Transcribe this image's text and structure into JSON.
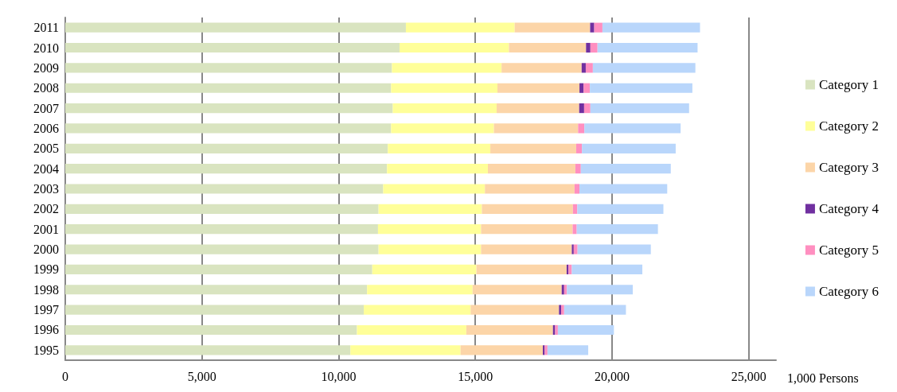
{
  "chart_data": {
    "type": "bar",
    "orientation": "horizontal",
    "stacked": true,
    "xlabel": "1,000 Persons",
    "categories": [
      "2011",
      "2010",
      "2009",
      "2008",
      "2007",
      "2006",
      "2005",
      "2004",
      "2003",
      "2002",
      "2001",
      "2000",
      "1999",
      "1998",
      "1997",
      "1996",
      "1995"
    ],
    "series": [
      {
        "name": "Category 1",
        "color": "#d9e4c0",
        "values": [
          12460,
          12230,
          11950,
          11920,
          11980,
          11920,
          11800,
          11770,
          11630,
          11460,
          11440,
          11460,
          11230,
          11040,
          10920,
          10670,
          10430
        ]
      },
      {
        "name": "Category 2",
        "color": "#ffff99",
        "values": [
          3980,
          4000,
          4010,
          3890,
          3800,
          3760,
          3750,
          3690,
          3720,
          3780,
          3770,
          3750,
          3810,
          3860,
          3910,
          4000,
          4030
        ]
      },
      {
        "name": "Category 3",
        "color": "#fcd5a8",
        "values": [
          2760,
          2820,
          2930,
          3000,
          3020,
          3080,
          3140,
          3200,
          3280,
          3330,
          3350,
          3320,
          3300,
          3260,
          3230,
          3170,
          3010
        ]
      },
      {
        "name": "Category 4",
        "color": "#7030a0",
        "values": [
          150,
          160,
          150,
          150,
          180,
          0,
          0,
          0,
          0,
          0,
          0,
          70,
          70,
          90,
          80,
          80,
          70
        ]
      },
      {
        "name": "Category 5",
        "color": "#ff8fc0",
        "values": [
          300,
          260,
          260,
          230,
          230,
          230,
          210,
          200,
          180,
          160,
          150,
          140,
          120,
          100,
          110,
          100,
          100
        ]
      },
      {
        "name": "Category 6",
        "color": "#b9d6fb",
        "values": [
          3570,
          3660,
          3750,
          3750,
          3610,
          3520,
          3430,
          3290,
          3210,
          3150,
          2970,
          2680,
          2580,
          2410,
          2260,
          2050,
          1490
        ]
      }
    ],
    "xlim": [
      0,
      26000
    ],
    "xticks": [
      {
        "value": 0,
        "label": "0"
      },
      {
        "value": 5000,
        "label": "5,000"
      },
      {
        "value": 10000,
        "label": "10,000"
      },
      {
        "value": 15000,
        "label": "15,000"
      },
      {
        "value": 20000,
        "label": "20,000"
      },
      {
        "value": 25000,
        "label": "25,000"
      }
    ],
    "grid": "x",
    "legend": "right"
  }
}
